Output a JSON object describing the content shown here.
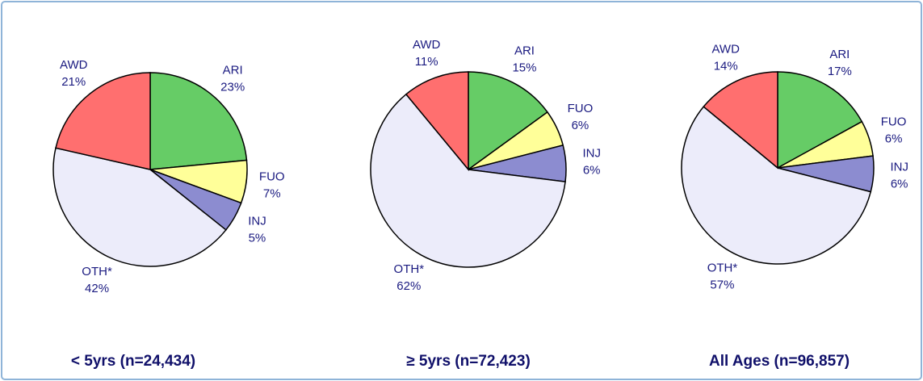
{
  "chart_data": [
    {
      "type": "pie",
      "title": "< 5yrs (n=24,434)",
      "categories": [
        "ARI",
        "FUO",
        "INJ",
        "OTH*",
        "AWD"
      ],
      "values": [
        23,
        7,
        5,
        42,
        21
      ],
      "value_labels": [
        "23%",
        "7%",
        "5%",
        "42%",
        "21%"
      ],
      "colors": [
        "#66cc66",
        "#ffff99",
        "#8c8cd0",
        "#ececfa",
        "#ff6f6f"
      ]
    },
    {
      "type": "pie",
      "title": "≥ 5yrs (n=72,423)",
      "categories": [
        "ARI",
        "FUO",
        "INJ",
        "OTH*",
        "AWD"
      ],
      "values": [
        15,
        6,
        6,
        62,
        11
      ],
      "value_labels": [
        "15%",
        "6%",
        "6%",
        "62%",
        "11%"
      ],
      "colors": [
        "#66cc66",
        "#ffff99",
        "#8c8cd0",
        "#ececfa",
        "#ff6f6f"
      ]
    },
    {
      "type": "pie",
      "title": "All Ages (n=96,857)",
      "categories": [
        "ARI",
        "FUO",
        "INJ",
        "OTH*",
        "AWD"
      ],
      "values": [
        17,
        6,
        6,
        57,
        14
      ],
      "value_labels": [
        "17%",
        "6%",
        "6%",
        "57%",
        "14%"
      ],
      "colors": [
        "#66cc66",
        "#ffff99",
        "#8c8cd0",
        "#ececfa",
        "#ff6f6f"
      ]
    }
  ]
}
